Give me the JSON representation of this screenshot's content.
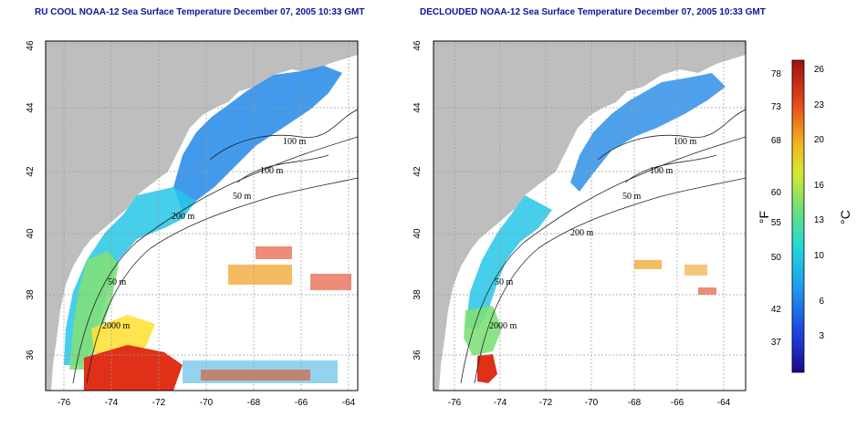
{
  "panels": [
    {
      "title": "RU COOL NOAA-12 Sea Surface Temperature December 07, 2005 10:33 GMT",
      "lon_ticks": [
        "-76",
        "-74",
        "-72",
        "-70",
        "-68",
        "-66",
        "-64"
      ],
      "lat_ticks": [
        "36",
        "38",
        "40",
        "42",
        "44",
        "46"
      ],
      "contours": [
        "100 m",
        "100 m",
        "50 m",
        "200 m",
        "50 m",
        "2000 m"
      ]
    },
    {
      "title": "DECLOUDED NOAA-12 Sea Surface Temperature December 07, 2005 10:33 GMT",
      "lon_ticks": [
        "-76",
        "-74",
        "-72",
        "-70",
        "-68",
        "-66",
        "-64"
      ],
      "lat_ticks": [
        "36",
        "38",
        "40",
        "42",
        "44",
        "46"
      ],
      "contours": [
        "100 m",
        "100 m",
        "50 m",
        "200 m",
        "50 m",
        "2000 m"
      ]
    }
  ],
  "colorbar": {
    "fahrenheit": [
      "78",
      "73",
      "68",
      "60",
      "55",
      "50",
      "42",
      "37"
    ],
    "celsius": [
      "26",
      "23",
      "20",
      "16",
      "13",
      "10",
      "6",
      "3"
    ],
    "unit_f": "°F",
    "unit_c": "°C"
  },
  "colors": {
    "land": "#bebebe",
    "grid": "#9a9a9a",
    "title": "#1010a0"
  }
}
